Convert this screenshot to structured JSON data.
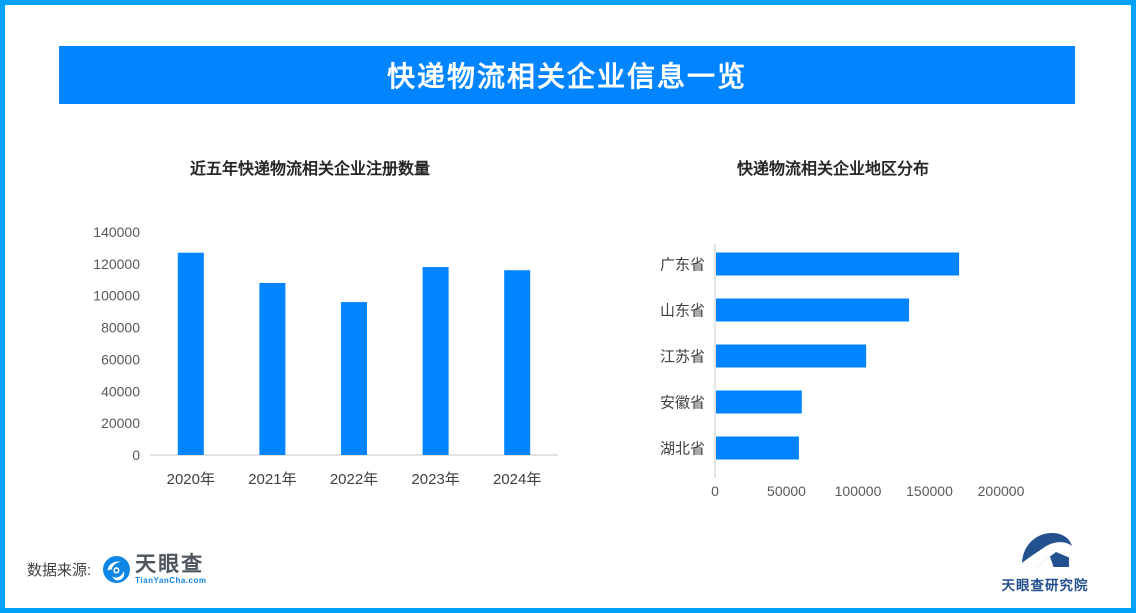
{
  "banner": {
    "title": "快递物流相关企业信息一览"
  },
  "chart_data": [
    {
      "type": "bar",
      "title": "近五年快递物流相关企业注册数量",
      "categories": [
        "2020年",
        "2021年",
        "2022年",
        "2023年",
        "2024年"
      ],
      "values": [
        127000,
        108000,
        96000,
        118000,
        116000
      ],
      "xlabel": "",
      "ylabel": "",
      "ylim": [
        0,
        140000
      ],
      "ytick_step": 20000,
      "grid": false,
      "bar_color": "#0084ff"
    },
    {
      "type": "bar-horizontal",
      "title": "快递物流相关企业地区分布",
      "categories": [
        "广东省",
        "山东省",
        "江苏省",
        "安徽省",
        "湖北省"
      ],
      "values": [
        170000,
        135000,
        105000,
        60000,
        58000
      ],
      "xlabel": "",
      "ylabel": "",
      "xlim": [
        0,
        200000
      ],
      "xticks": [
        0,
        50000,
        100000,
        150000,
        200000
      ],
      "grid": false,
      "bar_color": "#0084ff"
    }
  ],
  "footer": {
    "source_label": "数据来源:",
    "logo_name": "天眼查",
    "logo_domain": "TianYanCha.com",
    "institute": "天眼查研究院"
  },
  "theme": {
    "accent": "#0084ff",
    "border": "#00a1f8",
    "banner_bg": "#0084ff",
    "banner_text": "#ffffff",
    "axis_text": "#595959",
    "label_text": "#404040",
    "title_text": "#262626",
    "grid": "#d9d9d9",
    "tyc_blue": "#0e86e6",
    "tyc_text": "#4d565e",
    "institute_blue": "#23508e"
  }
}
